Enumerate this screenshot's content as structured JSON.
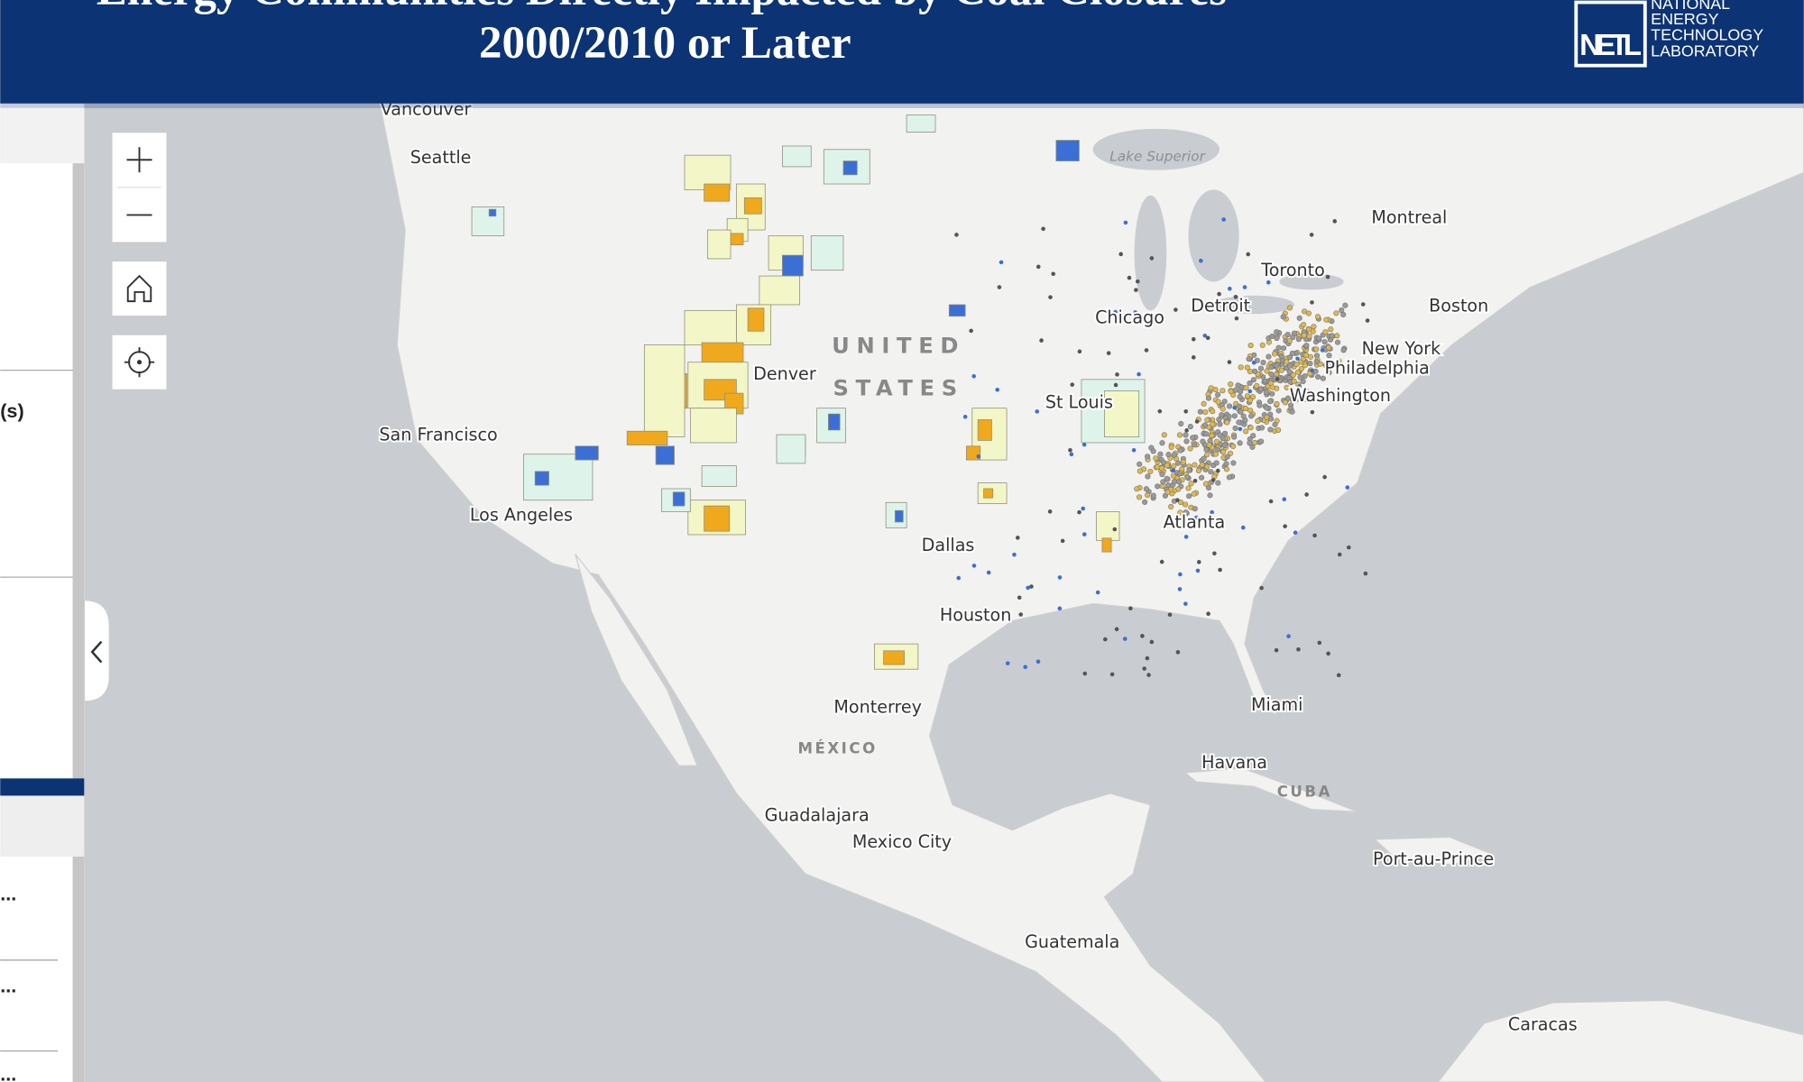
{
  "header": {
    "title_lines": [
      "Energy Communities Directly Impacted by Coal Closures",
      "2000/2010 or Later"
    ],
    "logo": {
      "mark": "NETL",
      "lines": [
        "NATIONAL",
        "ENERGY",
        "TECHNOLOGY",
        "LABORATORY"
      ]
    }
  },
  "sidebar": {
    "items": [
      "(s)",
      "...",
      "...",
      "..."
    ]
  },
  "map": {
    "labels": [
      "Vancouver",
      "Seattle",
      "San Francisco",
      "Los Angeles",
      "Denver",
      "UNITED",
      "STATES",
      "Chicago",
      "Detroit",
      "Toronto",
      "Montreal",
      "Boston",
      "New York",
      "Philadelphia",
      "Washington",
      "St Louis",
      "Atlanta",
      "Dallas",
      "Houston",
      "Monterrey",
      "MÉXICO",
      "Miami",
      "Havana",
      "CUBA",
      "Guadalajara",
      "Mexico City",
      "Port-au-Prince",
      "Guatemala",
      "Caracas",
      "Lake Superior"
    ]
  }
}
